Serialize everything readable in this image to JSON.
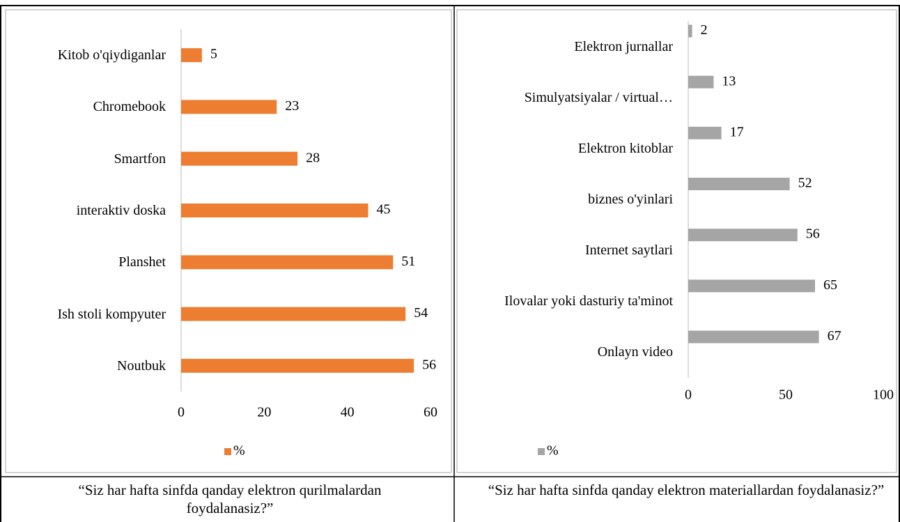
{
  "chart_data": [
    {
      "type": "bar",
      "orientation": "horizontal",
      "categories": [
        "Kitob o'qiydiganlar",
        "Chromebook",
        "Smartfon",
        "interaktiv doska",
        "Planshet",
        "Ish stoli kompyuter",
        "Noutbuk"
      ],
      "series": [
        {
          "name": "%",
          "color": "#ed7d31",
          "values": [
            5,
            23,
            28,
            45,
            51,
            54,
            56
          ]
        }
      ],
      "xlim": [
        0,
        60
      ],
      "xticks": [
        0,
        20,
        40,
        60
      ],
      "legend": "bottom"
    },
    {
      "type": "bar",
      "orientation": "horizontal",
      "categories": [
        "Elektron jurnallar",
        "Simulyatsiyalar / virtual…",
        "Elektron kitoblar",
        "biznes o'yinlari",
        "Internet saytlari",
        "Ilovalar yoki dasturiy ta'minot",
        "Onlayn video"
      ],
      "series": [
        {
          "name": "%",
          "color": "#a5a5a5",
          "values": [
            2,
            13,
            17,
            52,
            56,
            65,
            67
          ]
        }
      ],
      "xlim": [
        0,
        100
      ],
      "xticks": [
        0,
        50,
        100
      ],
      "legend": "bottom"
    }
  ],
  "captions": [
    "“Siz har hafta sinfda qanday elektron qurilmalardan  foydalanasiz?”",
    "“Siz har hafta sinfda qanday elektron materiallardan  foydalanasiz?”"
  ]
}
